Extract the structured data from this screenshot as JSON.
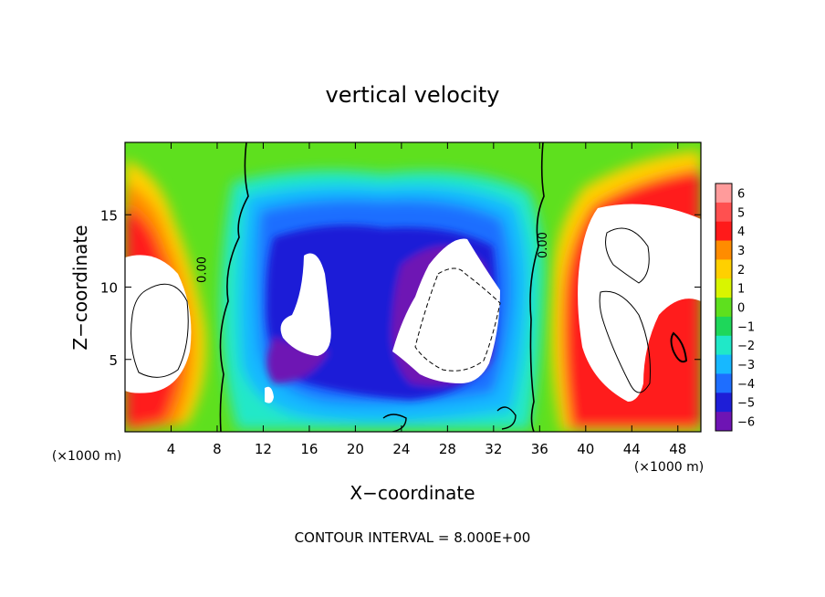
{
  "chart_data": {
    "type": "heatmap",
    "title": "vertical velocity",
    "xlabel": "X−coordinate",
    "ylabel": "Z−coordinate",
    "x_unit_left": "(×1000 m)",
    "x_unit_right": "(×1000 m)",
    "footer": "CONTOUR INTERVAL = 8.000E+00",
    "xlim": [
      0,
      50
    ],
    "ylim": [
      0,
      20
    ],
    "x_ticks": [
      4,
      8,
      12,
      16,
      20,
      24,
      28,
      32,
      36,
      40,
      44,
      48
    ],
    "x_tick_labels": [
      "4",
      "8",
      "12",
      "16",
      "20",
      "24",
      "28",
      "32",
      "36",
      "40",
      "44",
      "48"
    ],
    "y_ticks": [
      5,
      10,
      15
    ],
    "y_tick_labels": [
      "5",
      "10",
      "15"
    ],
    "colorbar": {
      "levels": [
        6,
        5,
        4,
        3,
        2,
        1,
        0,
        -1,
        -2,
        -3,
        -4,
        -5,
        -6
      ],
      "labels": [
        "6",
        "5",
        "4",
        "3",
        "2",
        "1",
        "0",
        "−1",
        "−2",
        "−3",
        "−4",
        "−5",
        "−6"
      ],
      "colors": [
        "#ff9b9b",
        "#ff5050",
        "#ff1a1a",
        "#ff8c00",
        "#ffd000",
        "#d9f500",
        "#5ee01e",
        "#1ed75a",
        "#20e8c8",
        "#17b8ff",
        "#1e6eff",
        "#1e1ed7",
        "#6e14b4"
      ]
    },
    "contour_labels": [
      {
        "text": "0.00",
        "x": 7.0,
        "y": 11.2
      },
      {
        "text": "0.00",
        "x": 36.6,
        "y": 12.9
      }
    ]
  }
}
